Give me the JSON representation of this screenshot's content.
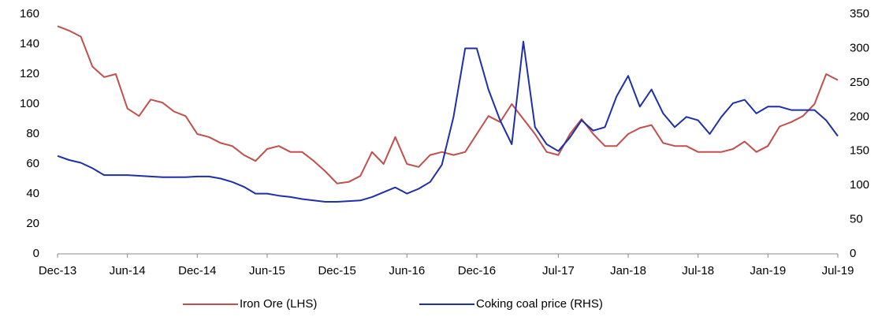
{
  "chart_data": {
    "type": "line",
    "categories": [
      "Dec-13",
      null,
      null,
      null,
      null,
      null,
      "Jun-14",
      null,
      null,
      null,
      null,
      null,
      "Dec-14",
      null,
      null,
      null,
      null,
      null,
      "Jun-15",
      null,
      null,
      null,
      null,
      null,
      "Dec-15",
      null,
      null,
      null,
      null,
      null,
      "Jun-16",
      null,
      null,
      null,
      null,
      null,
      "Dec-16",
      null,
      null,
      null,
      null,
      null,
      null,
      "Jul-17",
      null,
      null,
      null,
      null,
      null,
      "Jan-18",
      null,
      null,
      null,
      null,
      null,
      "Jul-18",
      null,
      null,
      null,
      null,
      null,
      "Jan-19",
      null,
      null,
      null,
      null,
      null,
      "Jul-19"
    ],
    "series": [
      {
        "name": "Iron Ore (LHS)",
        "color": "#c0504d",
        "axis": "y",
        "values": [
          152,
          149,
          145,
          125,
          118,
          120,
          97,
          92,
          103,
          101,
          95,
          92,
          80,
          78,
          74,
          72,
          66,
          62,
          70,
          72,
          68,
          68,
          62,
          55,
          47,
          48,
          52,
          68,
          60,
          78,
          60,
          58,
          66,
          68,
          66,
          68,
          80,
          92,
          88,
          100,
          90,
          80,
          68,
          66,
          80,
          90,
          80,
          72,
          72,
          80,
          84,
          86,
          74,
          72,
          72,
          68,
          68,
          68,
          70,
          75,
          68,
          72,
          85,
          88,
          92,
          100,
          120,
          116
        ]
      },
      {
        "name": "Coking coal price (RHS)",
        "color": "#1f2fa8",
        "axis": "y2",
        "values": [
          143,
          137,
          133,
          125,
          115,
          115,
          115,
          114,
          113,
          112,
          112,
          112,
          113,
          113,
          110,
          105,
          98,
          88,
          88,
          85,
          83,
          80,
          78,
          76,
          76,
          77,
          78,
          83,
          90,
          97,
          88,
          95,
          105,
          130,
          200,
          300,
          300,
          240,
          195,
          160,
          310,
          185,
          160,
          150,
          170,
          195,
          180,
          185,
          230,
          260,
          215,
          240,
          205,
          185,
          200,
          195,
          175,
          200,
          220,
          225,
          205,
          215,
          215,
          210,
          210,
          210,
          195,
          172
        ]
      }
    ],
    "ylim": [
      0,
      160
    ],
    "yticks": [
      0,
      20,
      40,
      60,
      80,
      100,
      120,
      140,
      160
    ],
    "y2lim": [
      0,
      350
    ],
    "y2ticks": [
      0,
      50,
      100,
      150,
      200,
      250,
      300,
      350
    ],
    "legend": "bottom"
  }
}
